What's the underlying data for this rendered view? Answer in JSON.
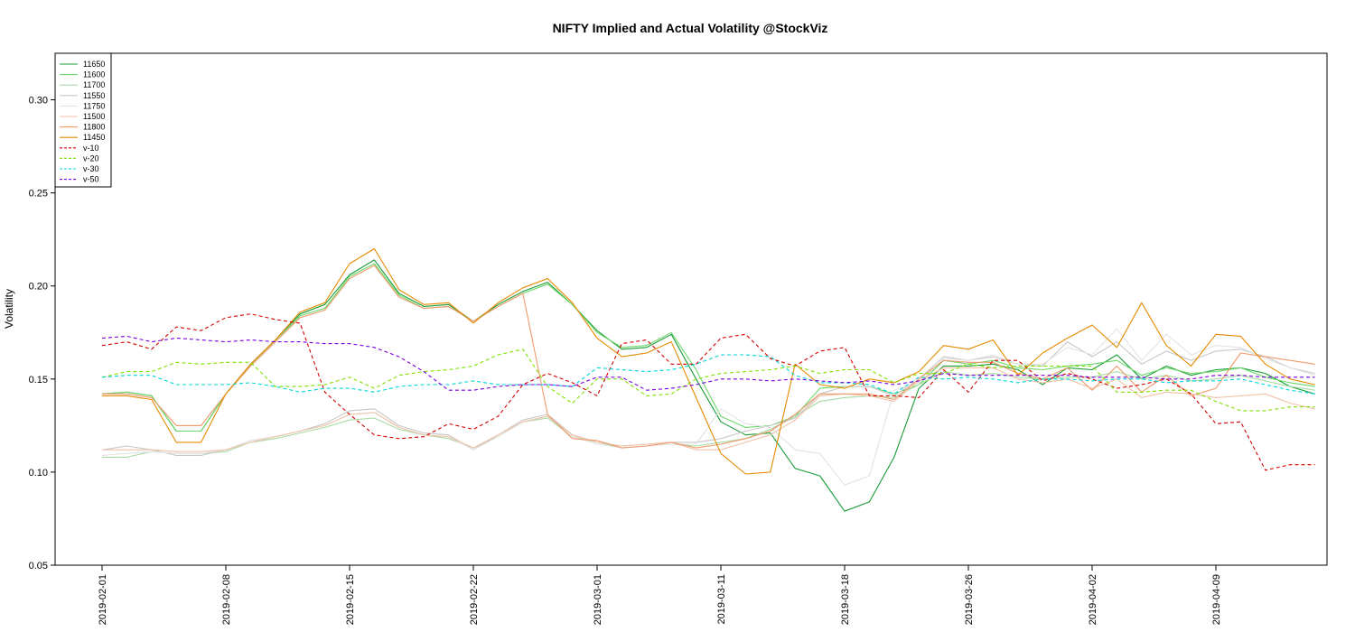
{
  "chart_data": {
    "type": "line",
    "title": "NIFTY Implied and Actual Volatility @StockViz",
    "xlabel": "",
    "ylabel": "Volatility",
    "ylim": [
      0.05,
      0.325
    ],
    "y_ticks": [
      "0.05",
      "0.10",
      "0.15",
      "0.20",
      "0.25",
      "0.30"
    ],
    "x_tick_labels": [
      "2019-02-01",
      "2019-02-08",
      "2019-02-15",
      "2019-02-22",
      "2019-03-01",
      "2019-03-11",
      "2019-03-18",
      "2019-03-26",
      "2019-04-02",
      "2019-04-09"
    ],
    "x_tick_index": [
      0,
      5,
      10,
      15,
      20,
      25,
      30,
      35,
      40,
      45
    ],
    "n_points": 50,
    "grid": false,
    "legend_position": "top-left",
    "series": [
      {
        "name": "11650",
        "color": "#1a9c38",
        "dash": "",
        "values": [
          0.142,
          0.143,
          0.141,
          0.122,
          0.122,
          0.142,
          0.158,
          0.171,
          0.185,
          0.19,
          0.206,
          0.214,
          0.196,
          0.189,
          0.19,
          0.181,
          0.19,
          0.197,
          0.202,
          0.19,
          0.176,
          0.166,
          0.167,
          0.174,
          0.15,
          0.127,
          0.12,
          0.121,
          0.102,
          0.098,
          0.079,
          0.084,
          0.108,
          0.145,
          0.157,
          0.157,
          0.158,
          0.155,
          0.147,
          0.156,
          0.155,
          0.163,
          0.15,
          0.157,
          0.152,
          0.155,
          0.156,
          0.153,
          0.146,
          0.142
        ]
      },
      {
        "name": "11600",
        "color": "#6cd86a",
        "dash": "",
        "values": [
          0.142,
          0.143,
          0.141,
          0.122,
          0.122,
          0.142,
          0.157,
          0.17,
          0.184,
          0.188,
          0.205,
          0.212,
          0.195,
          0.188,
          0.189,
          0.181,
          0.189,
          0.196,
          0.201,
          0.19,
          0.175,
          0.167,
          0.168,
          0.175,
          0.155,
          0.13,
          0.124,
          0.125,
          0.13,
          0.145,
          0.146,
          0.146,
          0.142,
          0.147,
          0.16,
          0.158,
          0.16,
          0.156,
          0.155,
          0.157,
          0.158,
          0.16,
          0.152,
          0.156,
          0.153,
          0.154,
          0.156,
          0.151,
          0.148,
          0.146
        ]
      },
      {
        "name": "11700",
        "color": "#a9dba5",
        "dash": "",
        "values": [
          0.108,
          0.108,
          0.111,
          0.11,
          0.11,
          0.111,
          0.116,
          0.118,
          0.121,
          0.124,
          0.128,
          0.129,
          0.123,
          0.12,
          0.118,
          0.113,
          0.119,
          0.127,
          0.129,
          0.119,
          0.116,
          0.113,
          0.114,
          0.115,
          0.114,
          0.116,
          0.118,
          0.123,
          0.13,
          0.138,
          0.14,
          0.141,
          0.14,
          0.147,
          0.154,
          0.152,
          0.153,
          0.151,
          0.15,
          0.151,
          0.151,
          0.154,
          0.15,
          0.152,
          0.149,
          0.15,
          0.152,
          0.149,
          0.146,
          0.144
        ]
      },
      {
        "name": "11550",
        "color": "#c8c8c8",
        "dash": "",
        "values": [
          0.112,
          0.114,
          0.112,
          0.109,
          0.109,
          0.112,
          0.117,
          0.119,
          0.122,
          0.126,
          0.133,
          0.134,
          0.125,
          0.121,
          0.12,
          0.112,
          0.12,
          0.128,
          0.131,
          0.12,
          0.116,
          0.114,
          0.115,
          0.116,
          0.116,
          0.118,
          0.122,
          0.125,
          0.129,
          0.142,
          0.146,
          0.146,
          0.141,
          0.15,
          0.162,
          0.16,
          0.162,
          0.158,
          0.157,
          0.17,
          0.162,
          0.17,
          0.158,
          0.165,
          0.16,
          0.165,
          0.166,
          0.162,
          0.156,
          0.153
        ]
      },
      {
        "name": "11750",
        "color": "#e3e3e3",
        "dash": "",
        "values": [
          0.109,
          0.11,
          0.111,
          0.11,
          0.11,
          0.112,
          0.117,
          0.119,
          0.122,
          0.125,
          0.131,
          0.132,
          0.124,
          0.12,
          0.119,
          0.112,
          0.119,
          0.127,
          0.13,
          0.119,
          0.115,
          0.113,
          0.114,
          0.115,
          0.115,
          0.134,
          0.126,
          0.124,
          0.112,
          0.11,
          0.093,
          0.098,
          0.144,
          0.148,
          0.161,
          0.16,
          0.163,
          0.158,
          0.158,
          0.167,
          0.163,
          0.177,
          0.16,
          0.174,
          0.163,
          0.168,
          0.167,
          0.161,
          0.156,
          0.152
        ]
      },
      {
        "name": "11500",
        "color": "#f0c2a8",
        "dash": "",
        "values": [
          0.112,
          0.112,
          0.112,
          0.111,
          0.111,
          0.112,
          0.116,
          0.119,
          0.122,
          0.125,
          0.131,
          0.132,
          0.124,
          0.12,
          0.119,
          0.113,
          0.12,
          0.127,
          0.13,
          0.12,
          0.116,
          0.114,
          0.115,
          0.116,
          0.112,
          0.112,
          0.116,
          0.12,
          0.128,
          0.141,
          0.142,
          0.141,
          0.138,
          0.149,
          0.156,
          0.156,
          0.156,
          0.15,
          0.148,
          0.15,
          0.145,
          0.15,
          0.14,
          0.143,
          0.142,
          0.14,
          0.141,
          0.142,
          0.137,
          0.134
        ]
      },
      {
        "name": "11800",
        "color": "#f09a6c",
        "dash": "",
        "values": [
          0.142,
          0.142,
          0.14,
          0.125,
          0.125,
          0.142,
          0.157,
          0.17,
          0.183,
          0.187,
          0.204,
          0.211,
          0.194,
          0.188,
          0.189,
          0.181,
          0.189,
          0.196,
          0.131,
          0.118,
          0.117,
          0.113,
          0.114,
          0.116,
          0.113,
          0.115,
          0.118,
          0.122,
          0.131,
          0.142,
          0.142,
          0.142,
          0.139,
          0.15,
          0.16,
          0.159,
          0.159,
          0.153,
          0.15,
          0.156,
          0.144,
          0.157,
          0.143,
          0.152,
          0.141,
          0.145,
          0.164,
          0.162,
          0.16,
          0.158
        ]
      },
      {
        "name": "11450",
        "color": "#e68a00",
        "dash": "",
        "values": [
          0.141,
          0.141,
          0.139,
          0.116,
          0.116,
          0.142,
          0.158,
          0.171,
          0.186,
          0.191,
          0.212,
          0.22,
          0.198,
          0.19,
          0.191,
          0.18,
          0.191,
          0.199,
          0.204,
          0.191,
          0.172,
          0.162,
          0.164,
          0.17,
          0.14,
          0.11,
          0.099,
          0.1,
          0.158,
          0.147,
          0.145,
          0.15,
          0.148,
          0.154,
          0.168,
          0.166,
          0.171,
          0.152,
          0.164,
          0.172,
          0.179,
          0.167,
          0.191,
          0.168,
          0.157,
          0.174,
          0.173,
          0.158,
          0.15,
          0.147
        ]
      },
      {
        "name": "v-10",
        "color": "#d40000",
        "dash": "4,3",
        "values": [
          0.168,
          0.17,
          0.166,
          0.178,
          0.176,
          0.183,
          0.185,
          0.182,
          0.18,
          0.143,
          0.131,
          0.12,
          0.118,
          0.119,
          0.126,
          0.123,
          0.13,
          0.147,
          0.153,
          0.148,
          0.141,
          0.169,
          0.171,
          0.158,
          0.158,
          0.172,
          0.174,
          0.161,
          0.157,
          0.165,
          0.167,
          0.141,
          0.141,
          0.14,
          0.155,
          0.143,
          0.16,
          0.16,
          0.149,
          0.153,
          0.15,
          0.145,
          0.147,
          0.15,
          0.142,
          0.126,
          0.127,
          0.101,
          0.104,
          0.104
        ]
      },
      {
        "name": "v-20",
        "color": "#7ee000",
        "dash": "4,3",
        "values": [
          0.151,
          0.154,
          0.154,
          0.159,
          0.158,
          0.159,
          0.159,
          0.146,
          0.146,
          0.147,
          0.151,
          0.145,
          0.152,
          0.154,
          0.155,
          0.157,
          0.163,
          0.166,
          0.146,
          0.137,
          0.15,
          0.15,
          0.141,
          0.142,
          0.15,
          0.153,
          0.154,
          0.155,
          0.157,
          0.153,
          0.155,
          0.155,
          0.148,
          0.153,
          0.153,
          0.158,
          0.156,
          0.157,
          0.157,
          0.157,
          0.157,
          0.143,
          0.143,
          0.144,
          0.144,
          0.138,
          0.133,
          0.133,
          0.135,
          0.135
        ]
      },
      {
        "name": "v-30",
        "color": "#00d6d6",
        "dash": "4,3",
        "values": [
          0.151,
          0.152,
          0.152,
          0.147,
          0.147,
          0.147,
          0.148,
          0.146,
          0.143,
          0.145,
          0.145,
          0.143,
          0.146,
          0.147,
          0.147,
          0.149,
          0.147,
          0.147,
          0.147,
          0.146,
          0.156,
          0.155,
          0.154,
          0.155,
          0.158,
          0.163,
          0.163,
          0.162,
          0.152,
          0.148,
          0.148,
          0.147,
          0.142,
          0.151,
          0.15,
          0.151,
          0.15,
          0.148,
          0.15,
          0.15,
          0.149,
          0.15,
          0.15,
          0.148,
          0.149,
          0.149,
          0.15,
          0.147,
          0.144,
          0.142
        ]
      },
      {
        "name": "v-50",
        "color": "#7a00e0",
        "dash": "4,3",
        "values": [
          0.172,
          0.173,
          0.17,
          0.172,
          0.171,
          0.17,
          0.171,
          0.17,
          0.17,
          0.169,
          0.169,
          0.167,
          0.162,
          0.154,
          0.144,
          0.144,
          0.146,
          0.147,
          0.147,
          0.146,
          0.151,
          0.151,
          0.144,
          0.145,
          0.147,
          0.15,
          0.15,
          0.149,
          0.15,
          0.149,
          0.148,
          0.149,
          0.147,
          0.149,
          0.153,
          0.152,
          0.152,
          0.152,
          0.152,
          0.152,
          0.151,
          0.151,
          0.151,
          0.15,
          0.15,
          0.152,
          0.152,
          0.151,
          0.151,
          0.151
        ]
      }
    ]
  }
}
